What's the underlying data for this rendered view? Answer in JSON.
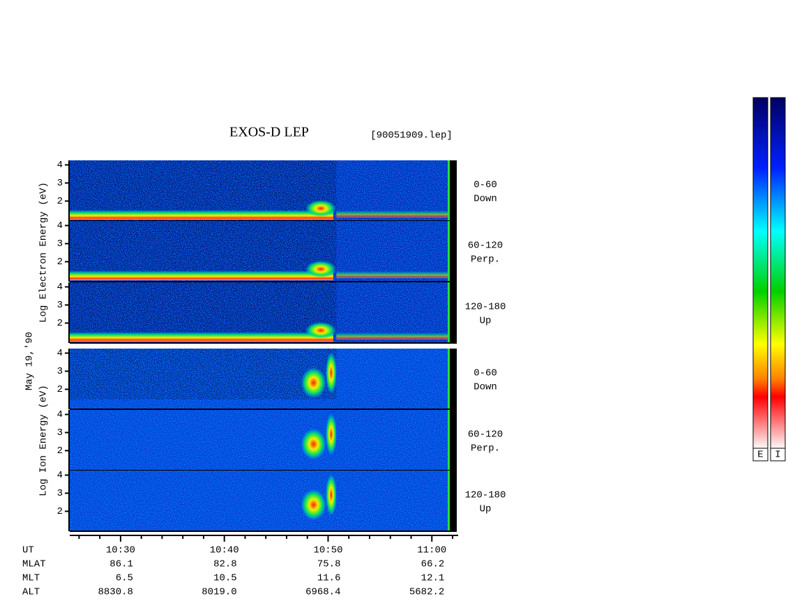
{
  "chart_data": {
    "type": "spectrogram",
    "title": "EXOS-D LEP",
    "file": "[90051909.lep]",
    "date_label": "May 19,'90",
    "electron_label": "Log  Electron  Energy (eV)",
    "ion_label": "Log  Ion  Energy (eV)",
    "xlim": [
      25.1,
      62.4
    ],
    "xticks": [
      {
        "value": 30,
        "label": "10:30"
      },
      {
        "value": 40,
        "label": "10:40"
      },
      {
        "value": 50,
        "label": "10:50"
      },
      {
        "value": 60,
        "label": "11:00"
      }
    ],
    "xminorticks": [
      26,
      28,
      32,
      34,
      36,
      38,
      42,
      44,
      46,
      48,
      52,
      54,
      56,
      58,
      62
    ],
    "ylim": [
      0.9,
      4.25
    ],
    "yticks": [
      2,
      3,
      4
    ],
    "panels": [
      {
        "species": "electron",
        "angle": "0-60",
        "direction": "Down"
      },
      {
        "species": "electron",
        "angle": "60-120",
        "direction": "Perp."
      },
      {
        "species": "electron",
        "angle": "120-180",
        "direction": "Up"
      },
      {
        "species": "ion",
        "angle": "0-60",
        "direction": "Down"
      },
      {
        "species": "ion",
        "angle": "60-120",
        "direction": "Perp."
      },
      {
        "species": "ion",
        "angle": "120-180",
        "direction": "Up"
      }
    ],
    "orbit_rows": [
      {
        "name": "UT",
        "values": []
      },
      {
        "name": "MLAT",
        "values": [
          "86.1",
          "82.8",
          "75.8",
          "66.2"
        ]
      },
      {
        "name": "MLT",
        "values": [
          "6.5",
          "10.5",
          "11.6",
          "12.1"
        ]
      },
      {
        "name": "ALT",
        "values": [
          "8830.8",
          "8019.0",
          "6968.4",
          "5682.2"
        ]
      }
    ],
    "colorbars": [
      "E",
      "I"
    ]
  }
}
